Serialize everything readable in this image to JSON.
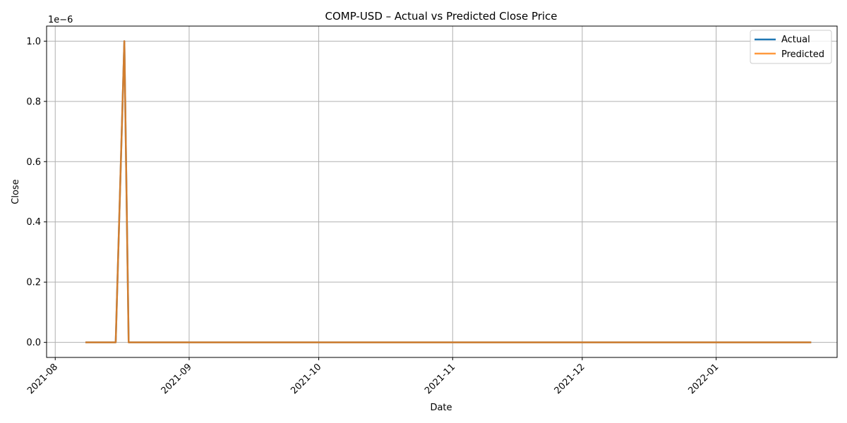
{
  "chart_data": {
    "type": "line",
    "title": "COMP-USD – Actual vs Predicted Close Price",
    "xlabel": "Date",
    "ylabel": "Close",
    "y_scale_label": "1e−6",
    "y_ticks": [
      "0.0",
      "0.2",
      "0.4",
      "0.6",
      "0.8",
      "1.0"
    ],
    "y_tick_values": [
      0.0,
      0.2,
      0.4,
      0.6,
      0.8,
      1.0
    ],
    "x_ticks": [
      "2021-08",
      "2021-09",
      "2021-10",
      "2021-11",
      "2021-12",
      "2022-01"
    ],
    "x_tick_dates": [
      "2021-08-01",
      "2021-09-01",
      "2021-10-01",
      "2021-11-01",
      "2021-12-01",
      "2022-01-01"
    ],
    "xlim": [
      "2021-07-30",
      "2022-01-29"
    ],
    "ylim": [
      -0.05,
      1.05
    ],
    "grid": true,
    "legend_position": "top-right",
    "series": [
      {
        "name": "Actual",
        "color": "#1f77b4",
        "points": [
          [
            "2021-08-08",
            0.0
          ],
          [
            "2021-08-15",
            0.0
          ],
          [
            "2021-08-16",
            0.5
          ],
          [
            "2021-08-17",
            1.0
          ],
          [
            "2021-08-18",
            0.0
          ],
          [
            "2022-01-23",
            0.0
          ]
        ]
      },
      {
        "name": "Predicted",
        "color": "#ff7f0e",
        "points": [
          [
            "2021-08-08",
            0.0
          ],
          [
            "2021-08-15",
            0.0
          ],
          [
            "2021-08-16",
            0.5
          ],
          [
            "2021-08-17",
            1.0
          ],
          [
            "2021-08-18",
            0.0
          ],
          [
            "2022-01-23",
            0.0
          ]
        ]
      }
    ]
  }
}
